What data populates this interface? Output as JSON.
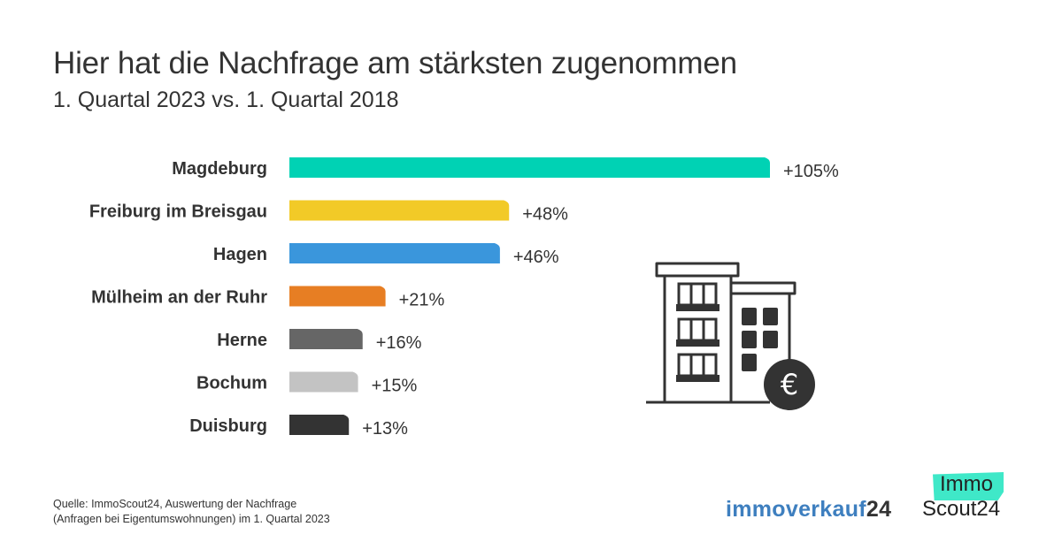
{
  "header": {
    "title": "Hier hat die Nachfrage am stärksten zugenommen",
    "subtitle": "1. Quartal 2023 vs. 1. Quartal 2018"
  },
  "chart_data": {
    "type": "bar",
    "orientation": "horizontal",
    "title": "Hier hat die Nachfrage am stärksten zugenommen",
    "subtitle": "1. Quartal 2023 vs. 1. Quartal 2018",
    "xlabel": "",
    "ylabel": "",
    "unit": "%",
    "grid": false,
    "xlim": [
      0,
      105
    ],
    "categories": [
      "Magdeburg",
      "Freiburg im Breisgau",
      "Hagen",
      "Mülheim an der Ruhr",
      "Herne",
      "Bochum",
      "Duisburg"
    ],
    "values": [
      105,
      48,
      46,
      21,
      16,
      15,
      13
    ],
    "value_labels": [
      "+105%",
      "+48%",
      "+46%",
      "+21%",
      "+16%",
      "+15%",
      "+13%"
    ],
    "colors": [
      "#00d2b4",
      "#f2ca27",
      "#3a96dc",
      "#e77e23",
      "#666666",
      "#c3c3c3",
      "#333333"
    ]
  },
  "illustration": {
    "icon": "building-with-euro-coin-icon",
    "coin_symbol": "€"
  },
  "footer": {
    "source_line1": "Quelle: ImmoScout24, Auswertung der Nachfrage",
    "source_line2": "(Anfragen bei Eigentumswohnungen) im 1. Quartal 2023",
    "logo_immoverkauf_part1": "immoverkauf",
    "logo_immoverkauf_part2": "24",
    "logo_immoscout_top": "Immo",
    "logo_immoscout_bottom": "Scout24"
  }
}
